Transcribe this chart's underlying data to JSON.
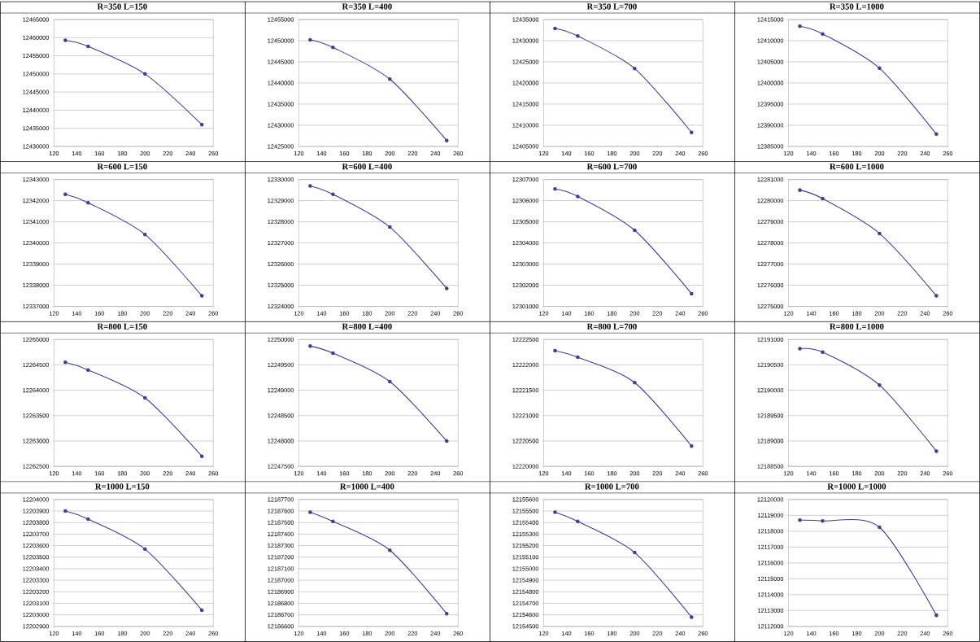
{
  "chart_data": [
    {
      "type": "line",
      "title": "R=350 L=150",
      "x": [
        130,
        150,
        200,
        250
      ],
      "values": [
        12459300,
        12457600,
        12450000,
        12436000
      ],
      "color": "#3c3c9c",
      "marker": "circle",
      "grid": "y",
      "xlim": [
        120,
        260
      ],
      "xticks": [
        120,
        140,
        160,
        180,
        200,
        220,
        240,
        260
      ],
      "ylim": [
        12430000,
        12465000
      ],
      "yticks": [
        12430000,
        12435000,
        12440000,
        12445000,
        12450000,
        12455000,
        12460000,
        12465000
      ]
    },
    {
      "type": "line",
      "title": "R=350 L=400",
      "x": [
        130,
        150,
        200,
        250
      ],
      "values": [
        12450200,
        12448400,
        12440900,
        12426400
      ],
      "color": "#3c3c9c",
      "marker": "circle",
      "grid": "y",
      "xlim": [
        120,
        260
      ],
      "xticks": [
        120,
        140,
        160,
        180,
        200,
        220,
        240,
        260
      ],
      "ylim": [
        12425000,
        12455000
      ],
      "yticks": [
        12425000,
        12430000,
        12435000,
        12440000,
        12445000,
        12450000,
        12455000
      ]
    },
    {
      "type": "line",
      "title": "R=350 L=700",
      "x": [
        130,
        150,
        200,
        250
      ],
      "values": [
        12432900,
        12431100,
        12423400,
        12408300
      ],
      "color": "#3c3c9c",
      "marker": "circle",
      "grid": "y",
      "xlim": [
        120,
        260
      ],
      "xticks": [
        120,
        140,
        160,
        180,
        200,
        220,
        240,
        260
      ],
      "ylim": [
        12405000,
        12435000
      ],
      "yticks": [
        12405000,
        12410000,
        12415000,
        12420000,
        12425000,
        12430000,
        12435000
      ]
    },
    {
      "type": "line",
      "title": "R=350 L=1000",
      "x": [
        130,
        150,
        200,
        250
      ],
      "values": [
        12413400,
        12411600,
        12403500,
        12387900
      ],
      "color": "#3c3c9c",
      "marker": "circle",
      "grid": "y",
      "xlim": [
        120,
        260
      ],
      "xticks": [
        120,
        140,
        160,
        180,
        200,
        220,
        240,
        260
      ],
      "ylim": [
        12385000,
        12415000
      ],
      "yticks": [
        12385000,
        12390000,
        12395000,
        12400000,
        12405000,
        12410000,
        12415000
      ]
    },
    {
      "type": "line",
      "title": "R=600 L=150",
      "x": [
        130,
        150,
        200,
        250
      ],
      "values": [
        12342300,
        12341900,
        12340400,
        12337500
      ],
      "color": "#3c3c9c",
      "marker": "circle",
      "grid": "y",
      "xlim": [
        120,
        260
      ],
      "xticks": [
        120,
        140,
        160,
        180,
        200,
        220,
        240,
        260
      ],
      "ylim": [
        12337000,
        12343000
      ],
      "yticks": [
        12337000,
        12338000,
        12339000,
        12340000,
        12341000,
        12342000,
        12343000
      ]
    },
    {
      "type": "line",
      "title": "R=600 L=400",
      "x": [
        130,
        150,
        200,
        250
      ],
      "values": [
        12329700,
        12329300,
        12327750,
        12324850
      ],
      "color": "#3c3c9c",
      "marker": "circle",
      "grid": "y",
      "xlim": [
        120,
        260
      ],
      "xticks": [
        120,
        140,
        160,
        180,
        200,
        220,
        240,
        260
      ],
      "ylim": [
        12324000,
        12330000
      ],
      "yticks": [
        12324000,
        12325000,
        12326000,
        12327000,
        12328000,
        12329000,
        12330000
      ]
    },
    {
      "type": "line",
      "title": "R=600 L=700",
      "x": [
        130,
        150,
        200,
        250
      ],
      "values": [
        12306550,
        12306200,
        12304600,
        12301600
      ],
      "color": "#3c3c9c",
      "marker": "circle",
      "grid": "y",
      "xlim": [
        120,
        260
      ],
      "xticks": [
        120,
        140,
        160,
        180,
        200,
        220,
        240,
        260
      ],
      "ylim": [
        12301000,
        12307000
      ],
      "yticks": [
        12301000,
        12302000,
        12303000,
        12304000,
        12305000,
        12306000,
        12307000
      ]
    },
    {
      "type": "line",
      "title": "R=600 L=1000",
      "x": [
        130,
        150,
        200,
        250
      ],
      "values": [
        12280500,
        12280100,
        12278450,
        12275500
      ],
      "color": "#3c3c9c",
      "marker": "circle",
      "grid": "y",
      "xlim": [
        120,
        260
      ],
      "xticks": [
        120,
        140,
        160,
        180,
        200,
        220,
        240,
        260
      ],
      "ylim": [
        12275000,
        12281000
      ],
      "yticks": [
        12275000,
        12276000,
        12277000,
        12278000,
        12279000,
        12280000,
        12281000
      ]
    },
    {
      "type": "line",
      "title": "R=800 L=150",
      "x": [
        130,
        150,
        200,
        250
      ],
      "values": [
        12264550,
        12264400,
        12263850,
        12262700
      ],
      "color": "#3c3c9c",
      "marker": "circle",
      "grid": "y",
      "xlim": [
        120,
        260
      ],
      "xticks": [
        120,
        140,
        160,
        180,
        200,
        220,
        240,
        260
      ],
      "ylim": [
        12262500,
        12265000
      ],
      "yticks": [
        12262500,
        12263000,
        12263500,
        12264000,
        12264500,
        12265000
      ]
    },
    {
      "type": "line",
      "title": "R=800 L=400",
      "x": [
        130,
        150,
        200,
        250
      ],
      "values": [
        12249870,
        12249730,
        12249170,
        12248000
      ],
      "color": "#3c3c9c",
      "marker": "circle",
      "grid": "y",
      "xlim": [
        120,
        260
      ],
      "xticks": [
        120,
        140,
        160,
        180,
        200,
        220,
        240,
        260
      ],
      "ylim": [
        12247500,
        12250000
      ],
      "yticks": [
        12247500,
        12248000,
        12248500,
        12249000,
        12249500,
        12250000
      ]
    },
    {
      "type": "line",
      "title": "R=800 L=700",
      "x": [
        130,
        150,
        200,
        250
      ],
      "values": [
        12222280,
        12222150,
        12221650,
        12220400
      ],
      "color": "#3c3c9c",
      "marker": "circle",
      "grid": "y",
      "xlim": [
        120,
        260
      ],
      "xticks": [
        120,
        140,
        160,
        180,
        200,
        220,
        240,
        260
      ],
      "ylim": [
        12220000,
        12222500
      ],
      "yticks": [
        12220000,
        12220500,
        12221000,
        12221500,
        12222000,
        12222500
      ]
    },
    {
      "type": "line",
      "title": "R=800 L=1000",
      "x": [
        130,
        150,
        200,
        250
      ],
      "values": [
        12190820,
        12190750,
        12190100,
        12188800
      ],
      "color": "#3c3c9c",
      "marker": "circle",
      "grid": "y",
      "xlim": [
        120,
        260
      ],
      "xticks": [
        120,
        140,
        160,
        180,
        200,
        220,
        240,
        260
      ],
      "ylim": [
        12188500,
        12191000
      ],
      "yticks": [
        12188500,
        12189000,
        12189500,
        12190000,
        12190500,
        12191000
      ]
    },
    {
      "type": "line",
      "title": "R=1000 L=150",
      "x": [
        130,
        150,
        200,
        250
      ],
      "values": [
        12203900,
        12203830,
        12203570,
        12203040
      ],
      "color": "#3c3c9c",
      "marker": "circle",
      "grid": "y",
      "xlim": [
        120,
        260
      ],
      "xticks": [
        120,
        140,
        160,
        180,
        200,
        220,
        240,
        260
      ],
      "ylim": [
        12202900,
        12204000
      ],
      "yticks": [
        12202900,
        12203000,
        12203100,
        12203200,
        12203300,
        12203400,
        12203500,
        12203600,
        12203700,
        12203800,
        12203900,
        12204000
      ]
    },
    {
      "type": "line",
      "title": "R=1000 L=400",
      "x": [
        130,
        150,
        200,
        250
      ],
      "values": [
        12187590,
        12187510,
        12187260,
        12186710
      ],
      "color": "#3c3c9c",
      "marker": "circle",
      "grid": "y",
      "xlim": [
        120,
        260
      ],
      "xticks": [
        120,
        140,
        160,
        180,
        200,
        220,
        240,
        260
      ],
      "ylim": [
        12186600,
        12187700
      ],
      "yticks": [
        12186600,
        12186700,
        12186800,
        12186900,
        12187000,
        12187100,
        12187200,
        12187300,
        12187400,
        12187500,
        12187600,
        12187700
      ]
    },
    {
      "type": "line",
      "title": "R=1000 L=700",
      "x": [
        130,
        150,
        200,
        250
      ],
      "values": [
        12155490,
        12155410,
        12155140,
        12154580
      ],
      "color": "#3c3c9c",
      "marker": "circle",
      "grid": "y",
      "xlim": [
        120,
        260
      ],
      "xticks": [
        120,
        140,
        160,
        180,
        200,
        220,
        240,
        260
      ],
      "ylim": [
        12154500,
        12155600
      ],
      "yticks": [
        12154500,
        12154600,
        12154700,
        12154800,
        12154900,
        12155000,
        12155100,
        12155200,
        12155300,
        12155400,
        12155500,
        12155600
      ]
    },
    {
      "type": "line",
      "title": "R=1000 L=1000",
      "x": [
        130,
        150,
        200,
        250
      ],
      "values": [
        12118700,
        12118650,
        12118250,
        12112700
      ],
      "color": "#3c3c9c",
      "marker": "circle",
      "grid": "y",
      "xlim": [
        120,
        260
      ],
      "xticks": [
        120,
        140,
        160,
        180,
        200,
        220,
        240,
        260
      ],
      "ylim": [
        12112000,
        12120000
      ],
      "yticks": [
        12112000,
        12113000,
        12114000,
        12115000,
        12116000,
        12117000,
        12118000,
        12119000,
        12120000
      ]
    }
  ]
}
